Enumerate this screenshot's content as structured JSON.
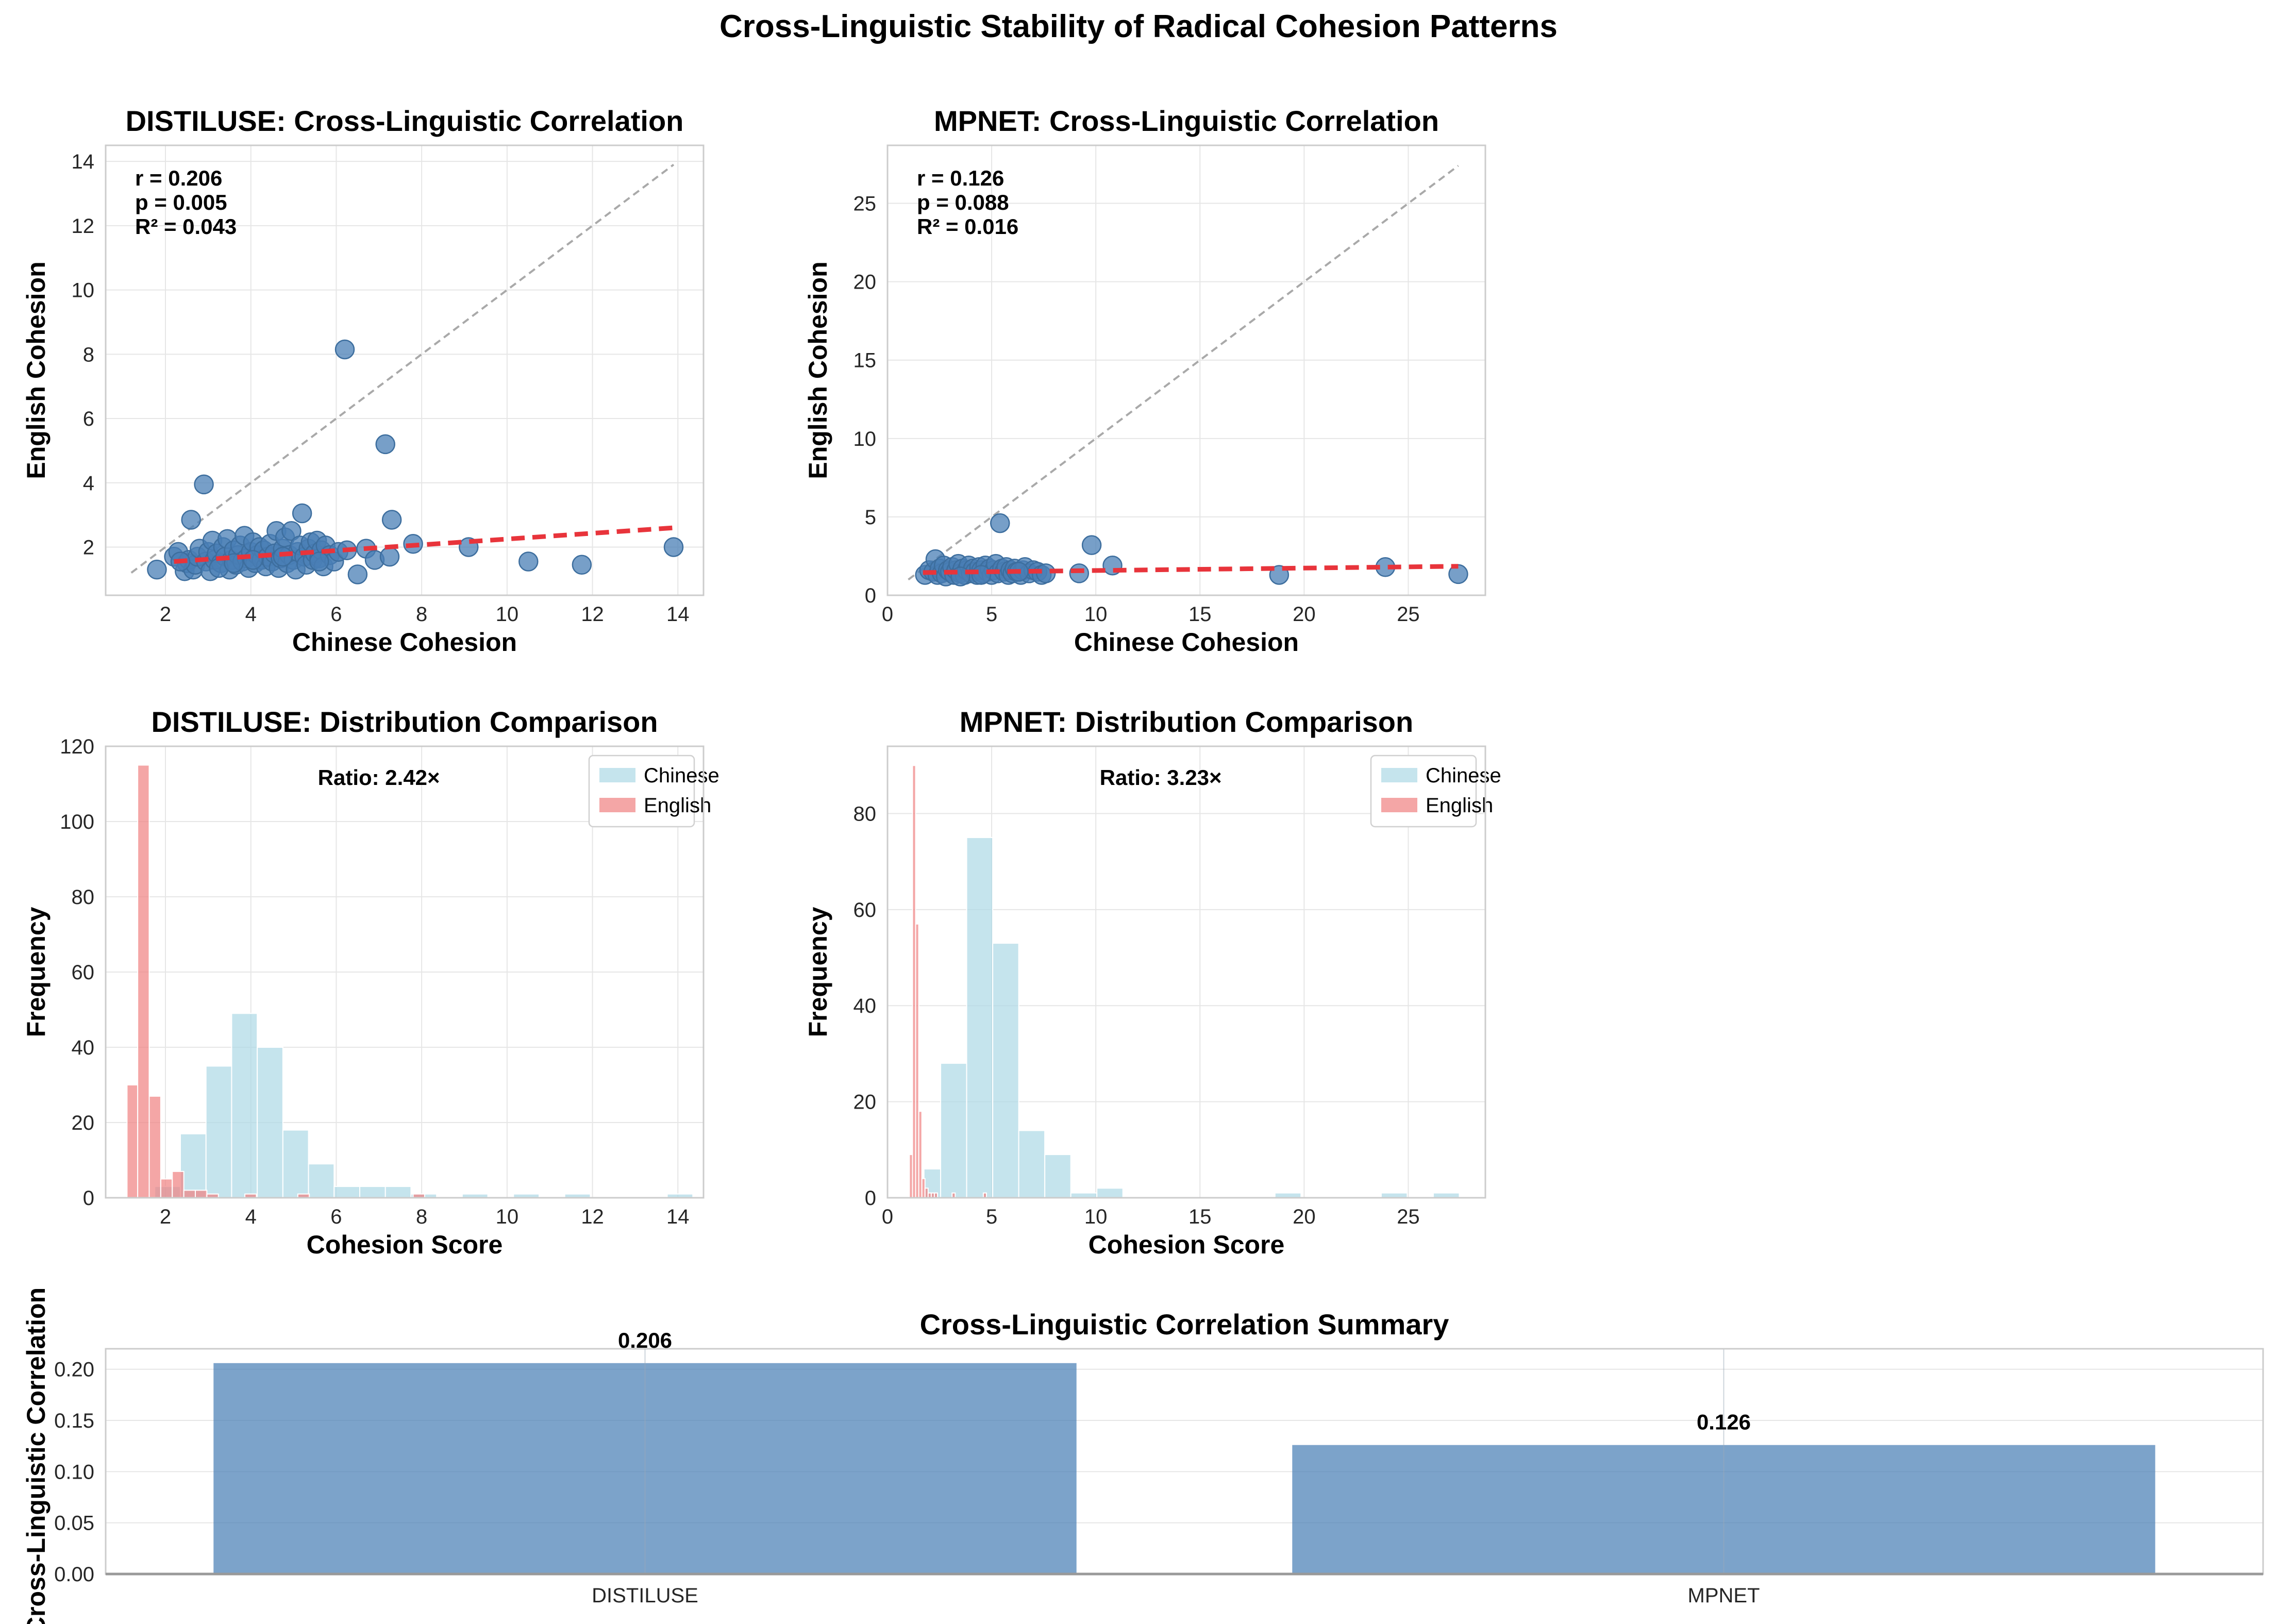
{
  "figure": {
    "title": "Cross-Linguistic Stability of Radical Cohesion Patterns"
  },
  "colors": {
    "point": "#4a7fb5",
    "regression": "#e8343b",
    "identity": "#a9a9a9",
    "chinese_hist": "#add8e6",
    "english_hist": "#f08080",
    "summary_bar": "#4a7fb5",
    "grid": "#e6e6e6",
    "frame": "#cccccc"
  },
  "chart_data": [
    {
      "id": "distiluse_scatter",
      "type": "scatter",
      "title": "DISTILUSE: Cross-Linguistic Correlation",
      "xlabel": "Chinese Cohesion",
      "ylabel": "English Cohesion",
      "xlim": [
        0.6,
        14.6
      ],
      "ylim": [
        0.5,
        14.5
      ],
      "xticks": [
        2,
        4,
        6,
        8,
        10,
        12,
        14
      ],
      "yticks": [
        2,
        4,
        6,
        8,
        10,
        12,
        14
      ],
      "grid": true,
      "stats": [
        "r = 0.206",
        "p = 0.005",
        "R² = 0.043"
      ],
      "identity_line": [
        [
          1.2,
          1.2
        ],
        [
          13.9,
          13.9
        ]
      ],
      "regression_line": [
        [
          2.2,
          1.55
        ],
        [
          13.9,
          2.6
        ]
      ],
      "points": [
        [
          1.8,
          1.3
        ],
        [
          2.2,
          1.7
        ],
        [
          2.3,
          1.85
        ],
        [
          2.45,
          1.25
        ],
        [
          2.5,
          1.5
        ],
        [
          2.55,
          1.6
        ],
        [
          2.6,
          2.85
        ],
        [
          2.65,
          1.3
        ],
        [
          2.7,
          1.45
        ],
        [
          2.75,
          1.7
        ],
        [
          2.8,
          1.95
        ],
        [
          2.9,
          3.95
        ],
        [
          2.95,
          1.55
        ],
        [
          3.0,
          1.85
        ],
        [
          3.05,
          1.25
        ],
        [
          3.1,
          2.2
        ],
        [
          3.15,
          1.6
        ],
        [
          3.2,
          1.8
        ],
        [
          3.3,
          1.5
        ],
        [
          3.35,
          2.0
        ],
        [
          3.4,
          1.7
        ],
        [
          3.45,
          2.25
        ],
        [
          3.5,
          1.3
        ],
        [
          3.55,
          1.6
        ],
        [
          3.6,
          1.9
        ],
        [
          3.65,
          1.45
        ],
        [
          3.7,
          1.75
        ],
        [
          3.75,
          2.05
        ],
        [
          3.8,
          1.55
        ],
        [
          3.85,
          2.35
        ],
        [
          3.9,
          1.65
        ],
        [
          3.95,
          1.35
        ],
        [
          4.0,
          1.85
        ],
        [
          4.05,
          2.15
        ],
        [
          4.1,
          1.5
        ],
        [
          4.15,
          1.75
        ],
        [
          4.2,
          2.0
        ],
        [
          4.25,
          1.6
        ],
        [
          4.3,
          1.9
        ],
        [
          4.35,
          1.4
        ],
        [
          4.4,
          1.7
        ],
        [
          4.45,
          2.1
        ],
        [
          4.5,
          1.55
        ],
        [
          4.55,
          1.8
        ],
        [
          4.6,
          2.5
        ],
        [
          4.65,
          1.35
        ],
        [
          4.7,
          1.65
        ],
        [
          4.75,
          1.95
        ],
        [
          4.8,
          2.3
        ],
        [
          4.85,
          1.5
        ],
        [
          4.9,
          1.75
        ],
        [
          4.95,
          2.5
        ],
        [
          5.0,
          1.6
        ],
        [
          5.05,
          1.3
        ],
        [
          5.1,
          1.85
        ],
        [
          5.15,
          2.05
        ],
        [
          5.2,
          3.05
        ],
        [
          5.25,
          1.7
        ],
        [
          5.3,
          1.45
        ],
        [
          5.35,
          1.95
        ],
        [
          5.4,
          2.15
        ],
        [
          5.45,
          1.6
        ],
        [
          5.5,
          1.8
        ],
        [
          5.55,
          2.2
        ],
        [
          5.6,
          1.65
        ],
        [
          5.65,
          1.9
        ],
        [
          5.7,
          1.4
        ],
        [
          5.75,
          2.05
        ],
        [
          5.85,
          1.75
        ],
        [
          5.95,
          1.55
        ],
        [
          6.05,
          1.85
        ],
        [
          6.2,
          8.15
        ],
        [
          6.25,
          1.9
        ],
        [
          6.5,
          1.15
        ],
        [
          6.7,
          1.95
        ],
        [
          6.9,
          1.6
        ],
        [
          7.15,
          5.2
        ],
        [
          7.25,
          1.7
        ],
        [
          7.3,
          2.85
        ],
        [
          7.8,
          2.1
        ],
        [
          9.1,
          2.0
        ],
        [
          10.5,
          1.55
        ],
        [
          11.75,
          1.45
        ],
        [
          13.9,
          2.0
        ],
        [
          2.35,
          1.55
        ],
        [
          3.25,
          1.35
        ],
        [
          4.05,
          1.6
        ],
        [
          4.75,
          1.7
        ],
        [
          5.6,
          1.55
        ],
        [
          3.6,
          1.5
        ]
      ]
    },
    {
      "id": "mpnet_scatter",
      "type": "scatter",
      "title": "MPNET: Cross-Linguistic Correlation",
      "xlabel": "Chinese Cohesion",
      "ylabel": "English Cohesion",
      "xlim": [
        0.0,
        28.7
      ],
      "ylim": [
        0.0,
        28.7
      ],
      "xticks": [
        0,
        5,
        10,
        15,
        20,
        25
      ],
      "yticks": [
        0,
        5,
        10,
        15,
        20,
        25
      ],
      "grid": true,
      "stats": [
        "r = 0.126",
        "p = 0.088",
        "R² = 0.016"
      ],
      "identity_line": [
        [
          1.0,
          1.0
        ],
        [
          27.4,
          27.4
        ]
      ],
      "regression_line": [
        [
          1.7,
          1.45
        ],
        [
          27.4,
          1.85
        ]
      ],
      "points": [
        [
          1.8,
          1.3
        ],
        [
          2.0,
          1.6
        ],
        [
          2.2,
          1.5
        ],
        [
          2.3,
          2.3
        ],
        [
          2.4,
          1.3
        ],
        [
          2.5,
          1.7
        ],
        [
          2.6,
          1.4
        ],
        [
          2.7,
          1.9
        ],
        [
          2.8,
          1.2
        ],
        [
          2.9,
          1.6
        ],
        [
          3.0,
          1.5
        ],
        [
          3.1,
          1.8
        ],
        [
          3.2,
          1.3
        ],
        [
          3.3,
          1.6
        ],
        [
          3.4,
          2.0
        ],
        [
          3.5,
          1.4
        ],
        [
          3.6,
          1.7
        ],
        [
          3.7,
          1.3
        ],
        [
          3.8,
          1.6
        ],
        [
          3.9,
          1.9
        ],
        [
          4.0,
          1.4
        ],
        [
          4.1,
          1.7
        ],
        [
          4.2,
          1.5
        ],
        [
          4.3,
          1.3
        ],
        [
          4.4,
          1.8
        ],
        [
          4.5,
          1.6
        ],
        [
          4.6,
          1.4
        ],
        [
          4.7,
          1.9
        ],
        [
          4.8,
          1.5
        ],
        [
          4.9,
          1.7
        ],
        [
          5.0,
          1.3
        ],
        [
          5.1,
          1.6
        ],
        [
          5.2,
          2.0
        ],
        [
          5.3,
          1.4
        ],
        [
          5.4,
          4.6
        ],
        [
          5.5,
          1.7
        ],
        [
          5.6,
          1.5
        ],
        [
          5.7,
          1.8
        ],
        [
          5.8,
          1.3
        ],
        [
          5.9,
          1.6
        ],
        [
          6.0,
          1.4
        ],
        [
          6.1,
          1.7
        ],
        [
          6.2,
          1.5
        ],
        [
          6.4,
          1.3
        ],
        [
          6.5,
          1.6
        ],
        [
          6.6,
          1.8
        ],
        [
          6.8,
          1.4
        ],
        [
          7.0,
          1.6
        ],
        [
          7.2,
          1.5
        ],
        [
          7.4,
          1.3
        ],
        [
          7.6,
          1.4
        ],
        [
          9.2,
          1.4
        ],
        [
          9.8,
          3.2
        ],
        [
          10.8,
          1.9
        ],
        [
          18.8,
          1.3
        ],
        [
          23.9,
          1.8
        ],
        [
          27.4,
          1.35
        ],
        [
          3.5,
          1.2
        ],
        [
          4.5,
          1.3
        ],
        [
          6.3,
          1.5
        ]
      ]
    },
    {
      "id": "distiluse_hist",
      "type": "histogram",
      "title": "DISTILUSE: Distribution Comparison",
      "xlabel": "Cohesion Score",
      "ylabel": "Frequency",
      "xlim": [
        0.6,
        14.6
      ],
      "ylim": [
        0,
        120
      ],
      "xticks": [
        2,
        4,
        6,
        8,
        10,
        12,
        14
      ],
      "yticks": [
        0,
        20,
        40,
        60,
        80,
        100,
        120
      ],
      "grid": true,
      "annotation": "Ratio: 2.42×",
      "legend": [
        "Chinese",
        "English"
      ],
      "legend_position": "upper right",
      "series": [
        {
          "name": "Chinese",
          "bins": [
            [
              1.75,
              2.35
            ],
            [
              2.35,
              2.95
            ],
            [
              2.95,
              3.55
            ],
            [
              3.55,
              4.15
            ],
            [
              4.15,
              4.75
            ],
            [
              4.75,
              5.35
            ],
            [
              5.35,
              5.95
            ],
            [
              5.95,
              6.55
            ],
            [
              6.55,
              7.15
            ],
            [
              7.15,
              7.75
            ],
            [
              7.75,
              8.35
            ],
            [
              8.95,
              9.55
            ],
            [
              10.15,
              10.75
            ],
            [
              11.35,
              11.95
            ],
            [
              13.15,
              13.75
            ],
            [
              13.75,
              14.35
            ]
          ],
          "counts": [
            3,
            17,
            35,
            49,
            40,
            18,
            9,
            3,
            3,
            3,
            1,
            1,
            1,
            1,
            0,
            1
          ]
        },
        {
          "name": "English",
          "bins": [
            [
              1.1,
              1.35
            ],
            [
              1.35,
              1.62
            ],
            [
              1.62,
              1.89
            ],
            [
              1.89,
              2.16
            ],
            [
              2.16,
              2.43
            ],
            [
              2.43,
              2.7
            ],
            [
              2.7,
              2.97
            ],
            [
              2.97,
              3.24
            ],
            [
              3.86,
              4.13
            ],
            [
              5.1,
              5.37
            ],
            [
              7.8,
              8.07
            ]
          ],
          "counts": [
            30,
            115,
            27,
            5,
            7,
            2,
            2,
            1,
            1,
            1,
            1
          ]
        }
      ]
    },
    {
      "id": "mpnet_hist",
      "type": "histogram",
      "title": "MPNET: Distribution Comparison",
      "xlabel": "Cohesion Score",
      "ylabel": "Frequency",
      "xlim": [
        0.0,
        28.7
      ],
      "ylim": [
        0,
        94
      ],
      "xticks": [
        0,
        5,
        10,
        15,
        20,
        25
      ],
      "yticks": [
        0,
        20,
        40,
        60,
        80
      ],
      "grid": true,
      "annotation": "Ratio: 3.23×",
      "legend": [
        "Chinese",
        "English"
      ],
      "legend_position": "upper right",
      "series": [
        {
          "name": "Chinese",
          "bins": [
            [
              1.75,
              2.55
            ],
            [
              2.55,
              3.8
            ],
            [
              3.8,
              5.05
            ],
            [
              5.05,
              6.3
            ],
            [
              6.3,
              7.55
            ],
            [
              7.55,
              8.8
            ],
            [
              8.8,
              10.05
            ],
            [
              10.05,
              11.3
            ],
            [
              18.6,
              19.85
            ],
            [
              23.7,
              24.95
            ],
            [
              26.2,
              27.45
            ]
          ],
          "counts": [
            6,
            28,
            75,
            53,
            14,
            9,
            1,
            2,
            1,
            1,
            1
          ]
        },
        {
          "name": "English",
          "bins": [
            [
              1.05,
              1.2
            ],
            [
              1.2,
              1.35
            ],
            [
              1.35,
              1.5
            ],
            [
              1.5,
              1.65
            ],
            [
              1.65,
              1.8
            ],
            [
              1.8,
              1.95
            ],
            [
              1.95,
              2.1
            ],
            [
              2.1,
              2.25
            ],
            [
              2.25,
              2.4
            ],
            [
              3.1,
              3.25
            ],
            [
              4.6,
              4.75
            ]
          ],
          "counts": [
            9,
            90,
            57,
            18,
            4,
            2,
            1,
            1,
            1,
            1,
            1
          ]
        }
      ]
    },
    {
      "id": "summary_bar",
      "type": "bar",
      "title": "Cross-Linguistic Correlation Summary",
      "xlabel": "",
      "ylabel": "Cross-Linguistic Correlation",
      "categories": [
        "DISTILUSE",
        "MPNET"
      ],
      "values": [
        0.206,
        0.126
      ],
      "value_labels": [
        "0.206",
        "0.126"
      ],
      "ylim": [
        0,
        0.22
      ],
      "yticks": [
        "0.00",
        "0.05",
        "0.10",
        "0.15",
        "0.20"
      ],
      "grid": true
    }
  ]
}
